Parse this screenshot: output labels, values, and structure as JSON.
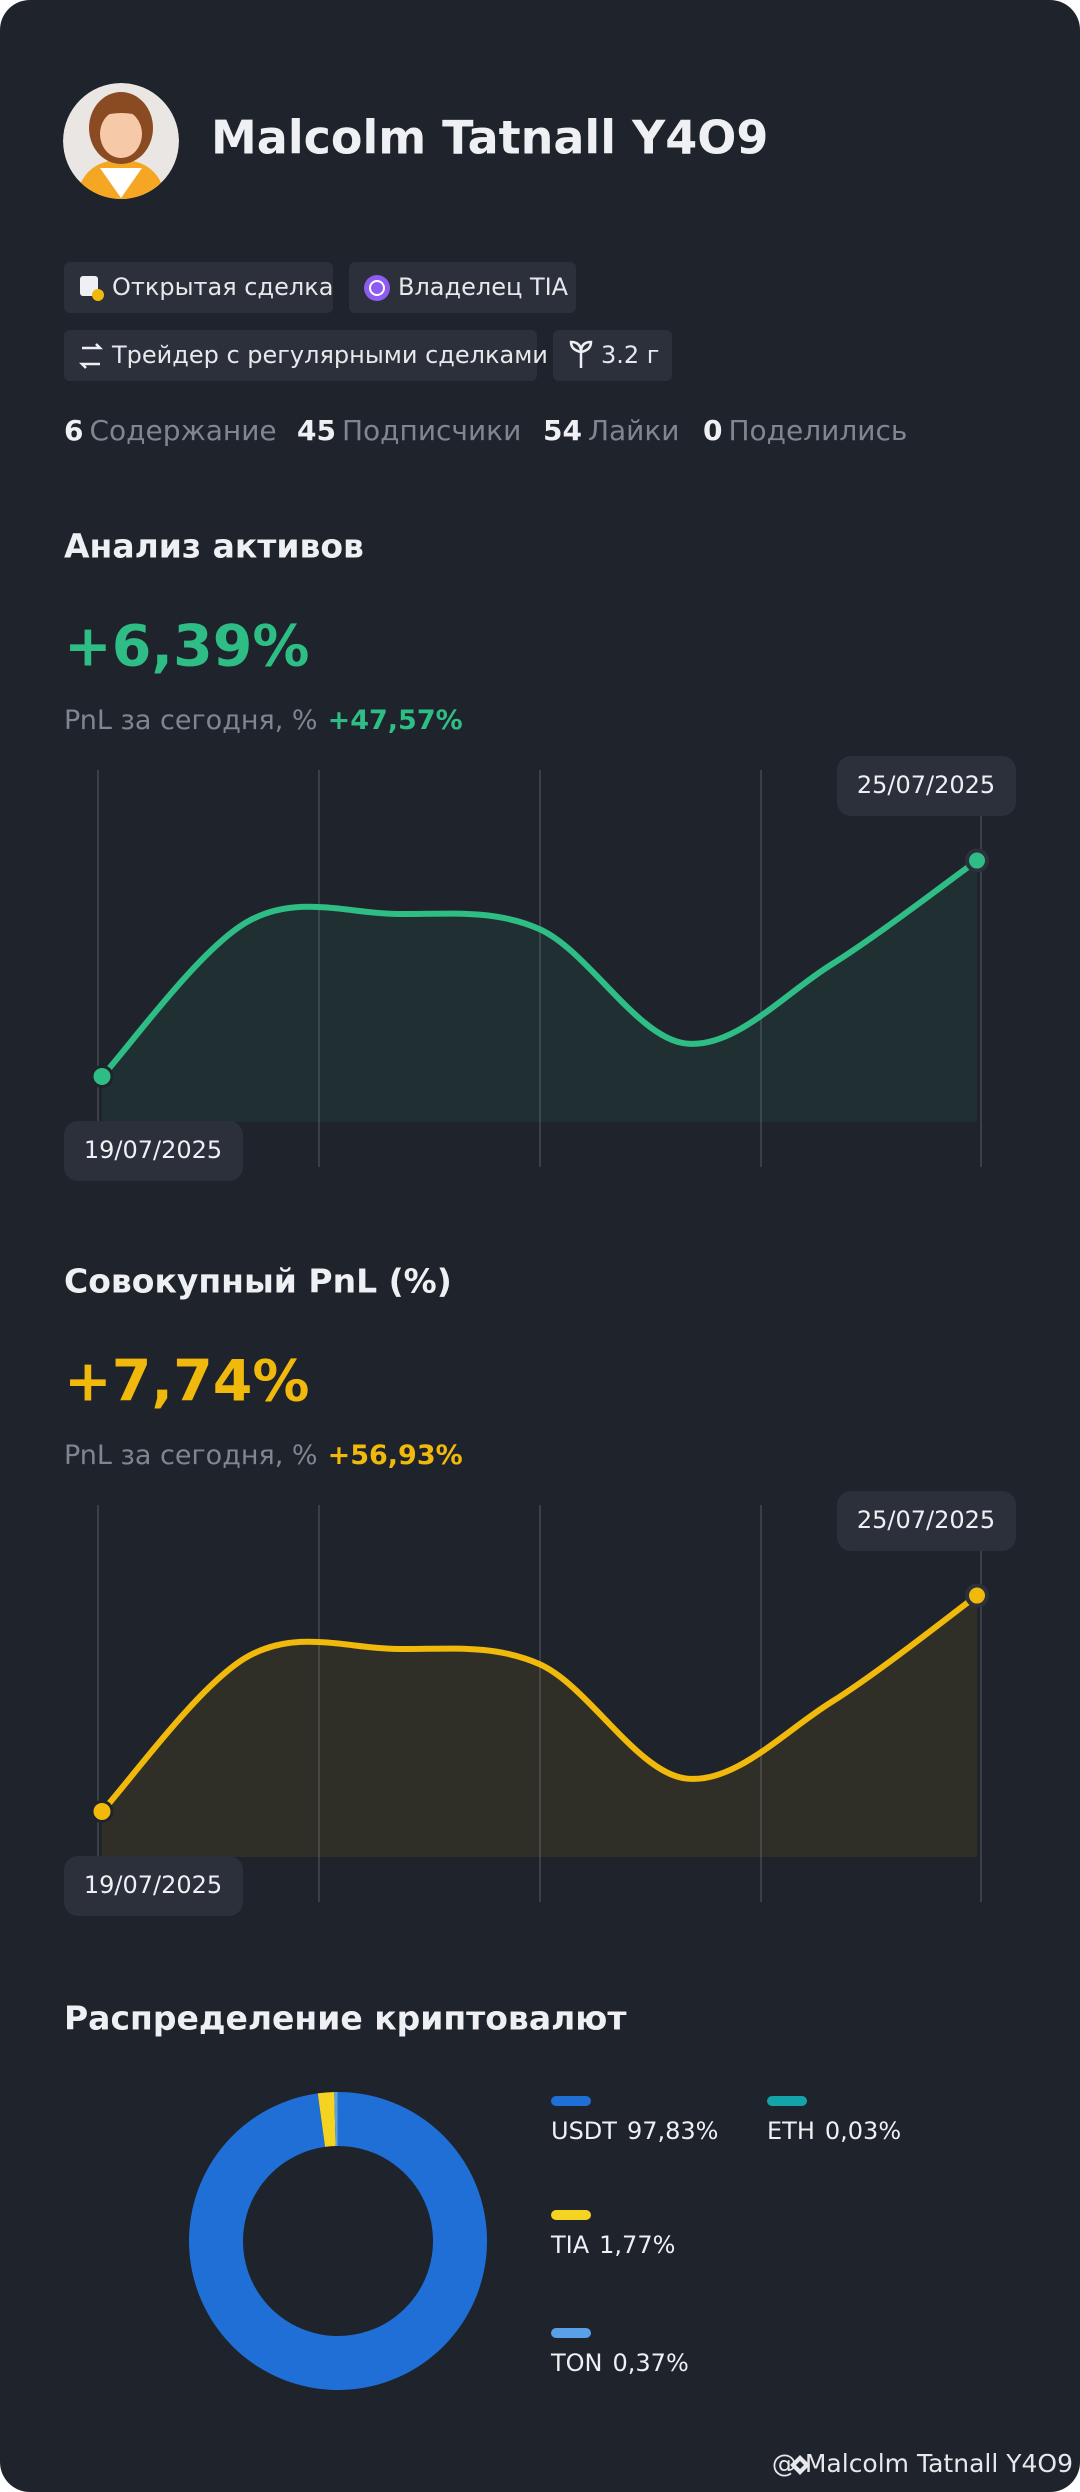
{
  "header": {
    "name": "Malcolm Tatnall Y4O9",
    "badges": [
      "Открытая сделка",
      "Владелец TIA",
      "Трейдер с регулярными сделками",
      "3.2 г"
    ],
    "stats": [
      {
        "value": 6,
        "label": "Содержание"
      },
      {
        "value": 45,
        "label": "Подписчики"
      },
      {
        "value": 54,
        "label": "Лайки"
      },
      {
        "value": 0,
        "label": "Поделились"
      }
    ]
  },
  "chart_data": [
    {
      "type": "line",
      "title": "Анализ активов",
      "headline": "+6,39%",
      "subtitle": "PnL за сегодня, %",
      "subtitle_value": "+47,57%",
      "start_label": "19/07/2025",
      "end_label": "25/07/2025",
      "color": "#2ebd85",
      "values": [
        14,
        75,
        78,
        72,
        27,
        58,
        99
      ],
      "ylim": [
        0,
        100
      ]
    },
    {
      "type": "line",
      "title": "Совокупный PnL (%)",
      "headline": "+7,74%",
      "subtitle": "PnL за сегодня, %",
      "subtitle_value": "+56,93%",
      "start_label": "19/07/2025",
      "end_label": "25/07/2025",
      "color": "#f0b90b",
      "values": [
        14,
        75,
        78,
        72,
        27,
        57,
        99
      ],
      "ylim": [
        0,
        100
      ]
    },
    {
      "type": "pie",
      "title": "Распределение криптовалют",
      "categories": [
        "USDT",
        "TIA",
        "TON",
        "ETH"
      ],
      "values": [
        97.83,
        1.77,
        0.37,
        0.03
      ],
      "value_labels": [
        "97,83%",
        "1,77%",
        "0,37%",
        "0,03%"
      ],
      "colors": [
        "#1f6fd6",
        "#f5d321",
        "#5aa0e8",
        "#14a3a8"
      ]
    }
  ],
  "footer": "@ Malcolm Tatnall Y4O9"
}
